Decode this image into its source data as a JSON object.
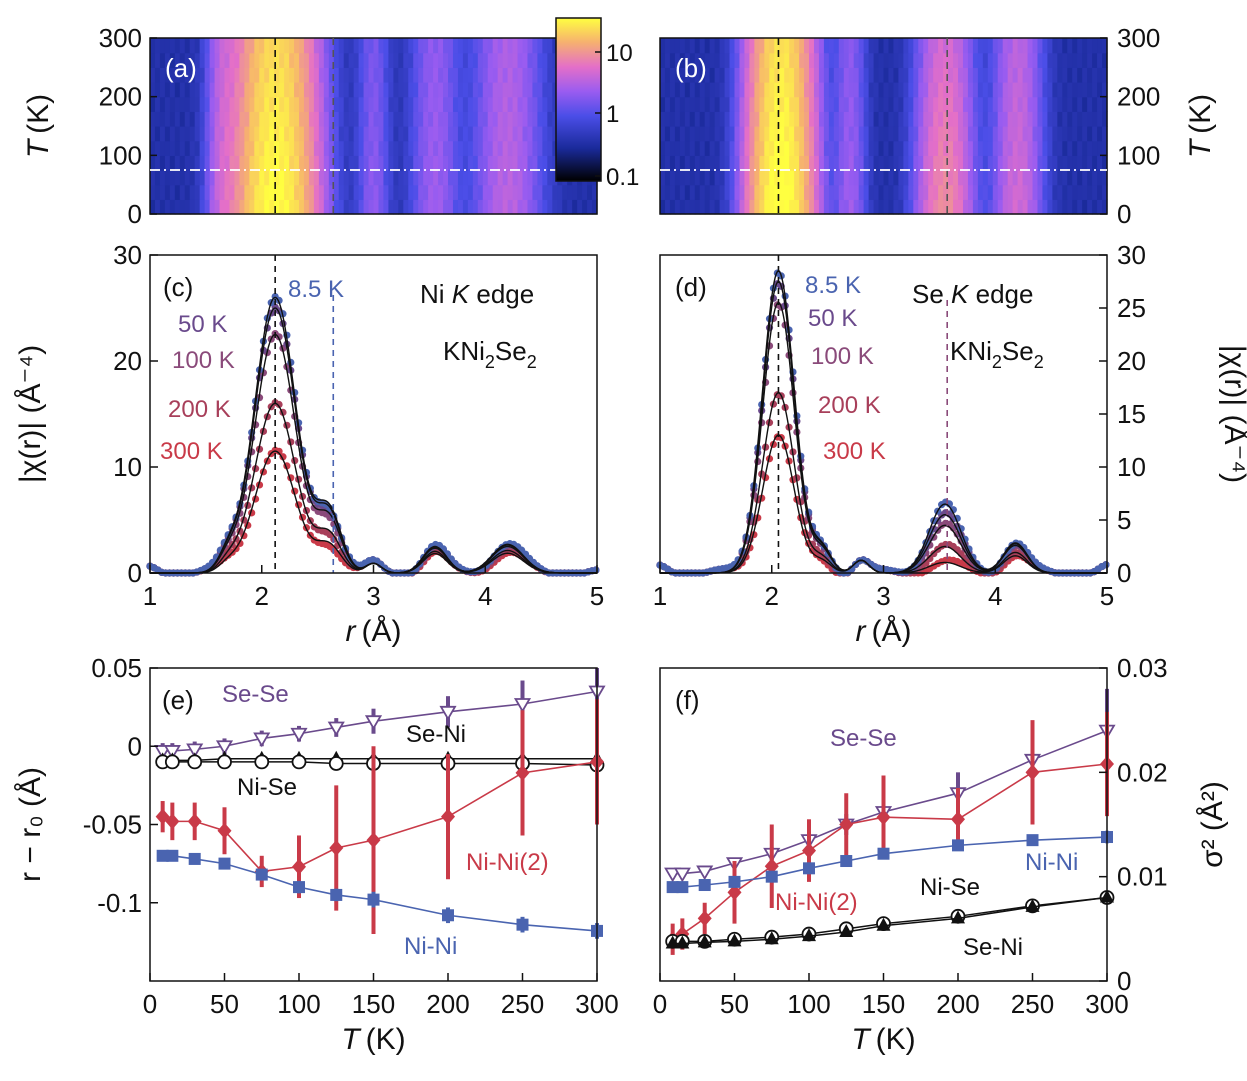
{
  "figure": {
    "panel_labels": [
      "(a)",
      "(b)",
      "(c)",
      "(d)",
      "(e)",
      "(f)"
    ],
    "colorbar": {
      "ticks": [
        "10",
        "1",
        "0.1"
      ],
      "scale": "log"
    }
  },
  "chart_data": [
    {
      "id": "a",
      "type": "heatmap",
      "title": "(a)",
      "xlim": [
        1,
        5
      ],
      "ylim": [
        0,
        300
      ],
      "ylabel_italic": "T",
      "ylabel": "(K)",
      "yticks": [
        0,
        100,
        200,
        300
      ],
      "peak_positions_r": [
        2.1,
        2.25,
        3.0,
        3.5,
        4.2
      ],
      "dashed_lines_r": [
        2.12,
        2.64
      ],
      "dashdot_line_T": 75
    },
    {
      "id": "b",
      "type": "heatmap",
      "title": "(b)",
      "xlim": [
        1,
        5
      ],
      "ylim": [
        0,
        300
      ],
      "ylabel_italic": "T",
      "ylabel": "(K)",
      "yticks": [
        0,
        100,
        200,
        300
      ],
      "peak_positions_r": [
        2.05,
        2.15,
        3.55,
        4.2
      ],
      "dashed_lines_r": [
        2.06,
        3.57
      ],
      "dashdot_line_T": 75
    },
    {
      "id": "c",
      "type": "line",
      "title": "(c)",
      "edge_prefix": "Ni",
      "edge_italic": "K",
      "edge_suffix": "edge",
      "compound": {
        "k": "KNi",
        "s1": "2",
        "se": "Se",
        "s2": "2"
      },
      "xlabel_italic": "r",
      "xlabel": "(Å)",
      "ylabel_text": "|χ(r)| (Å⁻⁴)",
      "xlim": [
        1,
        5
      ],
      "ylim": [
        0,
        30
      ],
      "xticks": [
        1,
        2,
        3,
        4,
        5
      ],
      "yticks": [
        0,
        10,
        20,
        30
      ],
      "dashed_lines_r": [
        2.12,
        2.64
      ],
      "series": [
        {
          "name": "8.5 K",
          "color": "#4a64b0",
          "peak": 26.0
        },
        {
          "name": "50 K",
          "color": "#6a4a8c",
          "peak": 25.0
        },
        {
          "name": "100 K",
          "color": "#8a4a7a",
          "peak": 22.5
        },
        {
          "name": "200 K",
          "color": "#a83f5a",
          "peak": 16.0
        },
        {
          "name": "300 K",
          "color": "#c93a48",
          "peak": 11.5
        }
      ]
    },
    {
      "id": "d",
      "type": "line",
      "title": "(d)",
      "edge_prefix": "Se",
      "edge_italic": "K",
      "edge_suffix": "edge",
      "compound": {
        "k": "KNi",
        "s1": "2",
        "se": "Se",
        "s2": "2"
      },
      "xlabel_italic": "r",
      "xlabel": "(Å)",
      "ylabel_text": "|χ(r)| (Å⁻⁴)",
      "xlim": [
        1,
        5
      ],
      "ylim": [
        0,
        30
      ],
      "xticks": [
        1,
        2,
        3,
        4,
        5
      ],
      "yticks": [
        0,
        5,
        10,
        15,
        20,
        25,
        30
      ],
      "dashed_lines_r": [
        2.06,
        3.57
      ],
      "series": [
        {
          "name": "8.5 K",
          "color": "#4a64b0",
          "peak": 28.5,
          "second_peak": 6.5
        },
        {
          "name": "50 K",
          "color": "#6a4a8c",
          "peak": 27.5,
          "second_peak": 5.5
        },
        {
          "name": "100 K",
          "color": "#8a4a7a",
          "peak": 25.5,
          "second_peak": 4.5
        },
        {
          "name": "200 K",
          "color": "#a83f5a",
          "peak": 17.0,
          "second_peak": 2.5
        },
        {
          "name": "300 K",
          "color": "#c93a48",
          "peak": 13.0,
          "second_peak": 1.0
        }
      ]
    },
    {
      "id": "e",
      "type": "scatter",
      "title": "(e)",
      "xlabel_italic": "T",
      "xlabel": "(K)",
      "ylabel_text": "r − r₀ (Å)",
      "xlim": [
        0,
        300
      ],
      "ylim": [
        -0.15,
        0.05
      ],
      "xticks": [
        0,
        50,
        100,
        150,
        200,
        250,
        300
      ],
      "ytick_labels": [
        "0.05",
        "0",
        "-0.05",
        "-0.1"
      ],
      "ytick_values": [
        0.05,
        0,
        -0.05,
        -0.1
      ],
      "x": [
        8.5,
        15,
        30,
        50,
        75,
        100,
        125,
        150,
        200,
        250,
        300
      ],
      "series": [
        {
          "name": "Se-Se",
          "color": "#6a4a8c",
          "marker": "tri-down-open",
          "values": [
            -0.003,
            -0.003,
            -0.002,
            0.0,
            0.005,
            0.008,
            0.012,
            0.016,
            0.022,
            0.027,
            0.035
          ],
          "err": [
            0.005,
            0.005,
            0.005,
            0.005,
            0.005,
            0.005,
            0.006,
            0.008,
            0.01,
            0.015,
            0.02
          ]
        },
        {
          "name": "Se-Ni",
          "color": "#111111",
          "marker": "tri-up-filled",
          "values": [
            -0.009,
            -0.009,
            -0.009,
            -0.008,
            -0.008,
            -0.008,
            -0.008,
            -0.008,
            -0.008,
            -0.008,
            -0.008
          ],
          "err": [
            0.002,
            0.002,
            0.002,
            0.002,
            0.002,
            0.002,
            0.002,
            0.002,
            0.002,
            0.002,
            0.002
          ]
        },
        {
          "name": "Ni-Se",
          "color": "#111111",
          "marker": "circle-open",
          "values": [
            -0.01,
            -0.01,
            -0.01,
            -0.01,
            -0.01,
            -0.01,
            -0.011,
            -0.011,
            -0.011,
            -0.011,
            -0.012
          ],
          "err": [
            0.002,
            0.002,
            0.002,
            0.002,
            0.002,
            0.002,
            0.002,
            0.002,
            0.002,
            0.002,
            0.002
          ]
        },
        {
          "name": "Ni-Ni(2)",
          "color": "#c93a48",
          "marker": "diamond-filled",
          "values": [
            -0.045,
            -0.048,
            -0.048,
            -0.054,
            -0.08,
            -0.077,
            -0.065,
            -0.06,
            -0.045,
            -0.017,
            -0.01
          ],
          "err": [
            0.01,
            0.012,
            0.012,
            0.015,
            0.01,
            0.02,
            0.04,
            0.06,
            0.04,
            0.04,
            0.04
          ]
        },
        {
          "name": "Ni-Ni",
          "color": "#4a64b0",
          "marker": "square-filled",
          "values": [
            -0.07,
            -0.07,
            -0.072,
            -0.075,
            -0.082,
            -0.09,
            -0.095,
            -0.098,
            -0.108,
            -0.114,
            -0.118
          ],
          "err": [
            0.002,
            0.002,
            0.002,
            0.003,
            0.003,
            0.004,
            0.004,
            0.005,
            0.005,
            0.005,
            0.005
          ]
        }
      ]
    },
    {
      "id": "f",
      "type": "scatter",
      "title": "(f)",
      "xlabel_italic": "T",
      "xlabel": "(K)",
      "ylabel_text": "σ² (Å²)",
      "xlim": [
        0,
        300
      ],
      "ylim": [
        0,
        0.03
      ],
      "xticks": [
        0,
        50,
        100,
        150,
        200,
        250,
        300
      ],
      "ytick_labels": [
        "0",
        "0.01",
        "0.02",
        "0.03"
      ],
      "ytick_values": [
        0,
        0.01,
        0.02,
        0.03
      ],
      "x": [
        8.5,
        15,
        30,
        50,
        75,
        100,
        125,
        150,
        200,
        250,
        300
      ],
      "series": [
        {
          "name": "Se-Se",
          "color": "#6a4a8c",
          "marker": "tri-down-open",
          "values": [
            0.0103,
            0.0103,
            0.0105,
            0.0113,
            0.0122,
            0.0135,
            0.015,
            0.0162,
            0.018,
            0.0212,
            0.024
          ],
          "err": [
            0.0004,
            0.0004,
            0.0004,
            0.0005,
            0.0006,
            0.0008,
            0.001,
            0.0015,
            0.002,
            0.003,
            0.004
          ]
        },
        {
          "name": "Ni-Ni(2)",
          "color": "#c93a48",
          "marker": "diamond-filled",
          "values": [
            0.004,
            0.0045,
            0.006,
            0.0085,
            0.011,
            0.0125,
            0.015,
            0.0157,
            0.0155,
            0.02,
            0.0208
          ],
          "err": [
            0.0015,
            0.0015,
            0.0015,
            0.003,
            0.004,
            0.003,
            0.003,
            0.004,
            0.003,
            0.005,
            0.005
          ]
        },
        {
          "name": "Ni-Ni",
          "color": "#4a64b0",
          "marker": "square-filled",
          "values": [
            0.009,
            0.009,
            0.0092,
            0.0095,
            0.01,
            0.0108,
            0.0115,
            0.0122,
            0.013,
            0.0135,
            0.0138
          ],
          "err": [
            0.0003,
            0.0003,
            0.0003,
            0.0003,
            0.0003,
            0.0004,
            0.0004,
            0.0005,
            0.0005,
            0.0005,
            0.0006
          ]
        },
        {
          "name": "Ni-Se",
          "color": "#111111",
          "marker": "circle-open",
          "values": [
            0.0038,
            0.0038,
            0.0038,
            0.004,
            0.0042,
            0.0045,
            0.005,
            0.0055,
            0.0062,
            0.0072,
            0.008
          ],
          "err": [
            0.0002,
            0.0002,
            0.0002,
            0.0002,
            0.0002,
            0.0002,
            0.0002,
            0.0002,
            0.0002,
            0.0002,
            0.0002
          ]
        },
        {
          "name": "Se-Ni",
          "color": "#111111",
          "marker": "tri-up-filled",
          "values": [
            0.0036,
            0.0036,
            0.0037,
            0.0038,
            0.004,
            0.0043,
            0.0047,
            0.0053,
            0.006,
            0.0071,
            0.008
          ],
          "err": [
            0.0002,
            0.0002,
            0.0002,
            0.0002,
            0.0002,
            0.0002,
            0.0002,
            0.0002,
            0.0002,
            0.0002,
            0.0002
          ]
        }
      ]
    }
  ]
}
